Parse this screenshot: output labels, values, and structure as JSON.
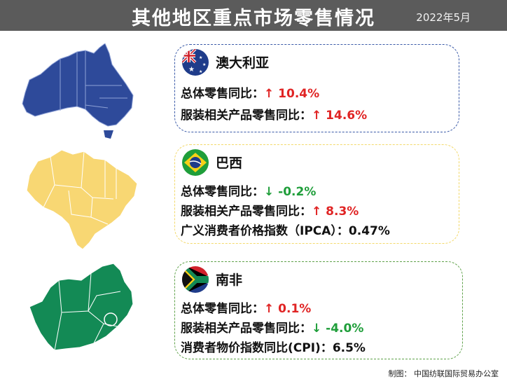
{
  "header": {
    "title": "其他地区重点市场零售情况",
    "date": "2022年5月"
  },
  "colors": {
    "header_bg": "#5b5b5b",
    "up": "#e02424",
    "down": "#1f9e3a",
    "australia_map": "#2e4a9a",
    "brazil_map": "#f8d773",
    "south_africa_map": "#138a55"
  },
  "australia": {
    "name": "澳大利亚",
    "flag_icon": "australia-flag-icon",
    "total_label": "总体零售同比：",
    "total_arrow": "↑",
    "total_value": "10.4%",
    "apparel_label": "服装相关产品零售同比：",
    "apparel_arrow": "↑",
    "apparel_value": "14.6%"
  },
  "brazil": {
    "name": "巴西",
    "flag_icon": "brazil-flag-icon",
    "total_label": "总体零售同比：",
    "total_arrow": "↓",
    "total_value": "-0.2%",
    "apparel_label": "服装相关产品零售同比：",
    "apparel_arrow": "↑",
    "apparel_value": "8.3%",
    "cpi_label": "广义消费者价格指数（IPCA）：",
    "cpi_value": "0.47%"
  },
  "south_africa": {
    "name": "南非",
    "flag_icon": "south-africa-flag-icon",
    "total_label": "总体零售同比：",
    "total_arrow": "↑",
    "total_value": "0.1%",
    "apparel_label": "服装相关产品零售同比：",
    "apparel_arrow": "↓",
    "apparel_value": "-4.0%",
    "cpi_label": "消费者物价指数同比(CPI)：",
    "cpi_value": "6.5%"
  },
  "footer": {
    "credit": "制图：  中国纺联国际贸易办公室"
  }
}
